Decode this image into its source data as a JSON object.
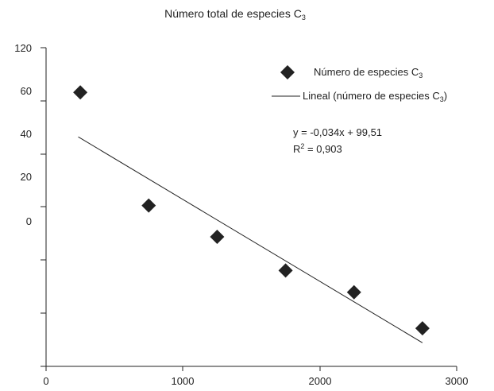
{
  "chart_data": {
    "type": "scatter",
    "title": "Número total de especies",
    "title_subscript": {
      "base": "C",
      "sub": "3"
    },
    "xlabel": "",
    "ylabel": "",
    "xlim": [
      0,
      3000
    ],
    "x_ticks": [
      "0",
      "1000",
      "2000",
      "3000"
    ],
    "y_tick_labels": [
      "120",
      "60",
      "40",
      "20",
      "0"
    ],
    "grid": false,
    "legend_position": "top-right",
    "series": [
      {
        "name": "Número de especies",
        "name_subscript": "3",
        "marker": "diamond",
        "color": "#222222",
        "x": [
          250,
          750,
          1250,
          1750,
          2250,
          2750
        ],
        "y": [
          110,
          63,
          50,
          36,
          27,
          12
        ]
      }
    ],
    "trendline": {
      "name": "Lineal (número de especies",
      "name_subscript": "3",
      "slope": -0.034,
      "intercept": 99.51,
      "x_range": [
        250,
        2750
      ],
      "color": "#222222"
    },
    "equation": "y = -0,034x + 99,51",
    "r_squared_label": "R",
    "r_squared_value": " = 0,903"
  }
}
